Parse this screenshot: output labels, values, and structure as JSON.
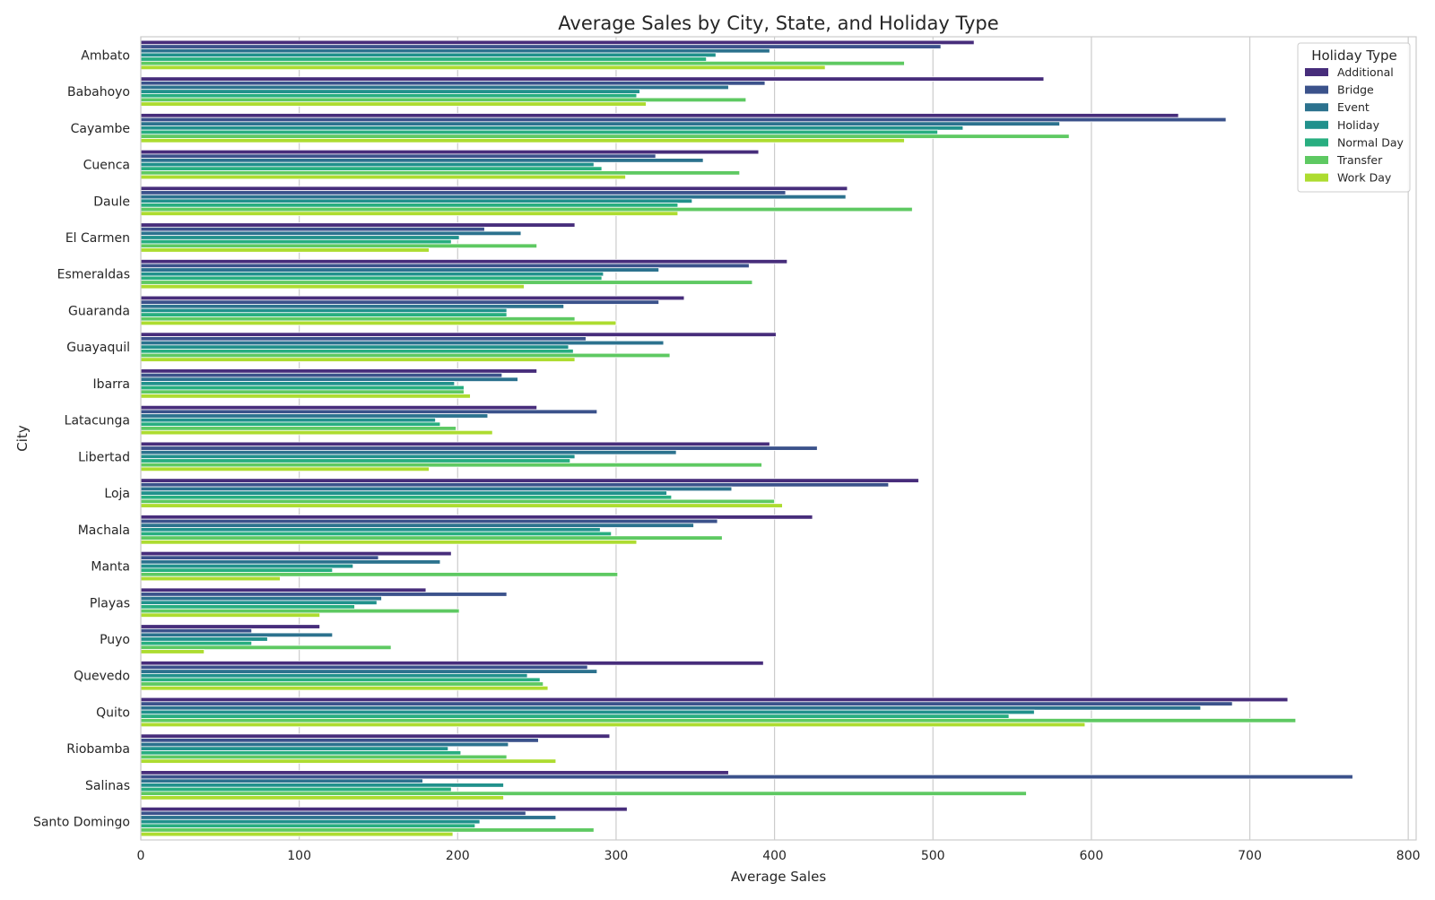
{
  "chart_data": {
    "type": "bar",
    "orientation": "horizontal",
    "title": "Average Sales by City, State, and Holiday Type",
    "xlabel": "Average Sales",
    "ylabel": "City",
    "xlim": [
      0,
      805
    ],
    "xticks": [
      "0",
      "100",
      "200",
      "300",
      "400",
      "500",
      "600",
      "700",
      "800"
    ],
    "grid": true,
    "legend_title": "Holiday Type",
    "legend_position": "top-right",
    "categories": [
      "Ambato",
      "Babahoyo",
      "Cayambe",
      "Cuenca",
      "Daule",
      "El Carmen",
      "Esmeraldas",
      "Guaranda",
      "Guayaquil",
      "Ibarra",
      "Latacunga",
      "Libertad",
      "Loja",
      "Machala",
      "Manta",
      "Playas",
      "Puyo",
      "Quevedo",
      "Quito",
      "Riobamba",
      "Salinas",
      "Santo Domingo"
    ],
    "series": [
      {
        "name": "Additional",
        "color": "#472d7b",
        "values": [
          526,
          570,
          655,
          390,
          446,
          274,
          408,
          343,
          401,
          250,
          250,
          397,
          491,
          424,
          196,
          180,
          113,
          393,
          724,
          296,
          371,
          307
        ]
      },
      {
        "name": "Bridge",
        "color": "#3b528b",
        "values": [
          505,
          394,
          685,
          325,
          407,
          217,
          384,
          327,
          281,
          228,
          288,
          427,
          472,
          364,
          150,
          231,
          70,
          282,
          689,
          251,
          765,
          243
        ]
      },
      {
        "name": "Event",
        "color": "#2c728e",
        "values": [
          397,
          371,
          580,
          355,
          445,
          240,
          327,
          267,
          330,
          238,
          219,
          338,
          373,
          349,
          189,
          152,
          121,
          288,
          669,
          232,
          178,
          262
        ]
      },
      {
        "name": "Holiday",
        "color": "#21918c",
        "values": [
          363,
          315,
          519,
          286,
          348,
          201,
          292,
          231,
          270,
          198,
          186,
          274,
          332,
          290,
          134,
          149,
          80,
          244,
          564,
          194,
          229,
          214
        ]
      },
      {
        "name": "Normal Day",
        "color": "#28ae80",
        "values": [
          357,
          313,
          503,
          291,
          339,
          196,
          291,
          231,
          273,
          204,
          189,
          271,
          335,
          297,
          121,
          135,
          70,
          252,
          548,
          202,
          196,
          211
        ]
      },
      {
        "name": "Transfer",
        "color": "#5ec962",
        "values": [
          482,
          382,
          586,
          378,
          487,
          250,
          386,
          274,
          334,
          204,
          199,
          392,
          400,
          367,
          301,
          201,
          158,
          254,
          729,
          231,
          559,
          286
        ]
      },
      {
        "name": "Work Day",
        "color": "#addc30",
        "values": [
          432,
          319,
          482,
          306,
          339,
          182,
          242,
          300,
          274,
          208,
          222,
          182,
          405,
          313,
          88,
          113,
          40,
          257,
          596,
          262,
          229,
          197
        ]
      }
    ]
  }
}
